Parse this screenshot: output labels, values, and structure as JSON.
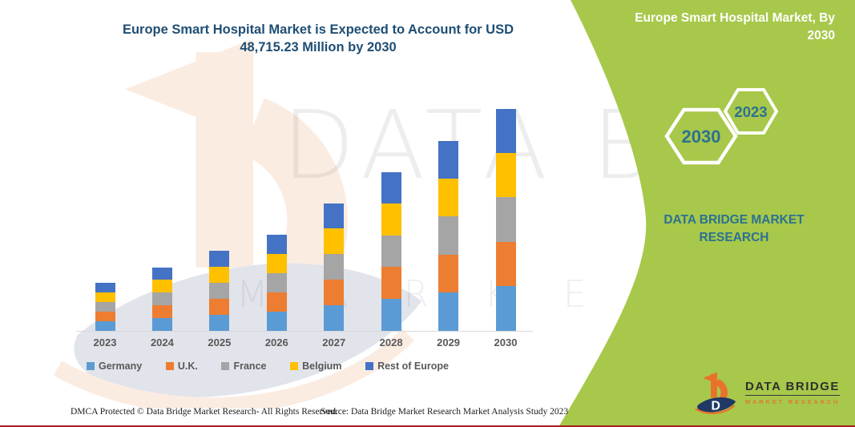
{
  "title": {
    "text": "Europe Smart Hospital Market is Expected to Account for USD 48,715.23 Million by 2030"
  },
  "panel": {
    "title": "Europe Smart Hospital Market, By 2030",
    "hexagons": [
      {
        "label": "2030"
      },
      {
        "label": "2023"
      }
    ],
    "brand_text": "DATA BRIDGE MARKET RESEARCH",
    "colors": {
      "green": "#A3C643",
      "teal": "#2C7191"
    }
  },
  "logo": {
    "name": "DATA BRIDGE",
    "tagline": "MARKET RESEARCH",
    "icon_letter": "D",
    "colors": {
      "orange": "#E8722C",
      "navy": "#203864"
    }
  },
  "watermark": {
    "line1": "DATA BRIDGE",
    "line2": "M A R K E T   R E S E A R C H"
  },
  "footer": {
    "dmca": "DMCA Protected © Data Bridge Market Research-  All Rights Reserved.",
    "source": "Source: Data Bridge Market Research  Market Analysis Study 2023"
  },
  "chart_data": {
    "type": "bar",
    "stacked": true,
    "title": "Europe Smart Hospital Market is Expected to Account for USD 48,715.23 Million by 2030",
    "unit": "USD Million",
    "categories": [
      "2023",
      "2024",
      "2025",
      "2026",
      "2027",
      "2028",
      "2029",
      "2030"
    ],
    "series": [
      {
        "name": "Germany",
        "color": "#5B9BD5",
        "values": [
          2110,
          2778,
          3518,
          4220,
          5592,
          6964,
          8336,
          9743.05
        ]
      },
      {
        "name": "U.K.",
        "color": "#ED7D31",
        "values": [
          2110,
          2778,
          3518,
          4220,
          5592,
          6964,
          8336,
          9743.05
        ]
      },
      {
        "name": "France",
        "color": "#A5A5A5",
        "values": [
          2110,
          2778,
          3518,
          4220,
          5592,
          6964,
          8336,
          9743.05
        ]
      },
      {
        "name": "Belgium",
        "color": "#FFC000",
        "values": [
          2110,
          2778,
          3518,
          4220,
          5592,
          6964,
          8336,
          9743.05
        ]
      },
      {
        "name": "Rest of Europe",
        "color": "#4472C4",
        "values": [
          2110,
          2778,
          3518,
          4220,
          5592,
          6964,
          8336,
          9743.03
        ]
      }
    ],
    "totals": [
      10550,
      13890,
      17590,
      21100,
      27960,
      34820,
      41680,
      48715.23
    ],
    "xlabel": "",
    "ylabel": "",
    "ylim": [
      0,
      48715.23
    ],
    "grid": false,
    "legend_position": "bottom"
  }
}
